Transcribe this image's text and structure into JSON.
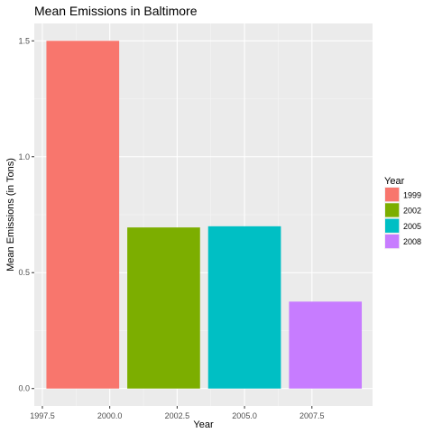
{
  "chart_data": {
    "type": "bar",
    "title": "Mean Emissions in Baltimore",
    "xlabel": "Year",
    "ylabel": "Mean Emissions (in Tons)",
    "x": [
      1999,
      2002,
      2005,
      2008
    ],
    "values": [
      1.5,
      0.695,
      0.7,
      0.375
    ],
    "bar_width_years": 2.7,
    "xlim": [
      1997.2,
      2009.75
    ],
    "ylim": [
      -0.075,
      1.575
    ],
    "x_ticks": [
      1997.5,
      2000.0,
      2002.5,
      2005.0,
      2007.5
    ],
    "x_tick_labels": [
      "1997.5",
      "2000.0",
      "2002.5",
      "2005.0",
      "2007.5"
    ],
    "y_ticks": [
      0.0,
      0.5,
      1.0,
      1.5
    ],
    "y_tick_labels": [
      "0.0",
      "0.5",
      "1.0",
      "1.5"
    ],
    "grid": true,
    "legend": {
      "title": "Year",
      "position": "right",
      "items": [
        {
          "label": "1999",
          "color": "#F8766D"
        },
        {
          "label": "2002",
          "color": "#7CAE00"
        },
        {
          "label": "2005",
          "color": "#00BFC4"
        },
        {
          "label": "2008",
          "color": "#C77CFF"
        }
      ]
    },
    "colors": {
      "panel_background": "#EBEBEB",
      "grid_major": "#FFFFFF",
      "grid_minor": "#F5F5F5",
      "tick_text": "#4D4D4D"
    }
  }
}
